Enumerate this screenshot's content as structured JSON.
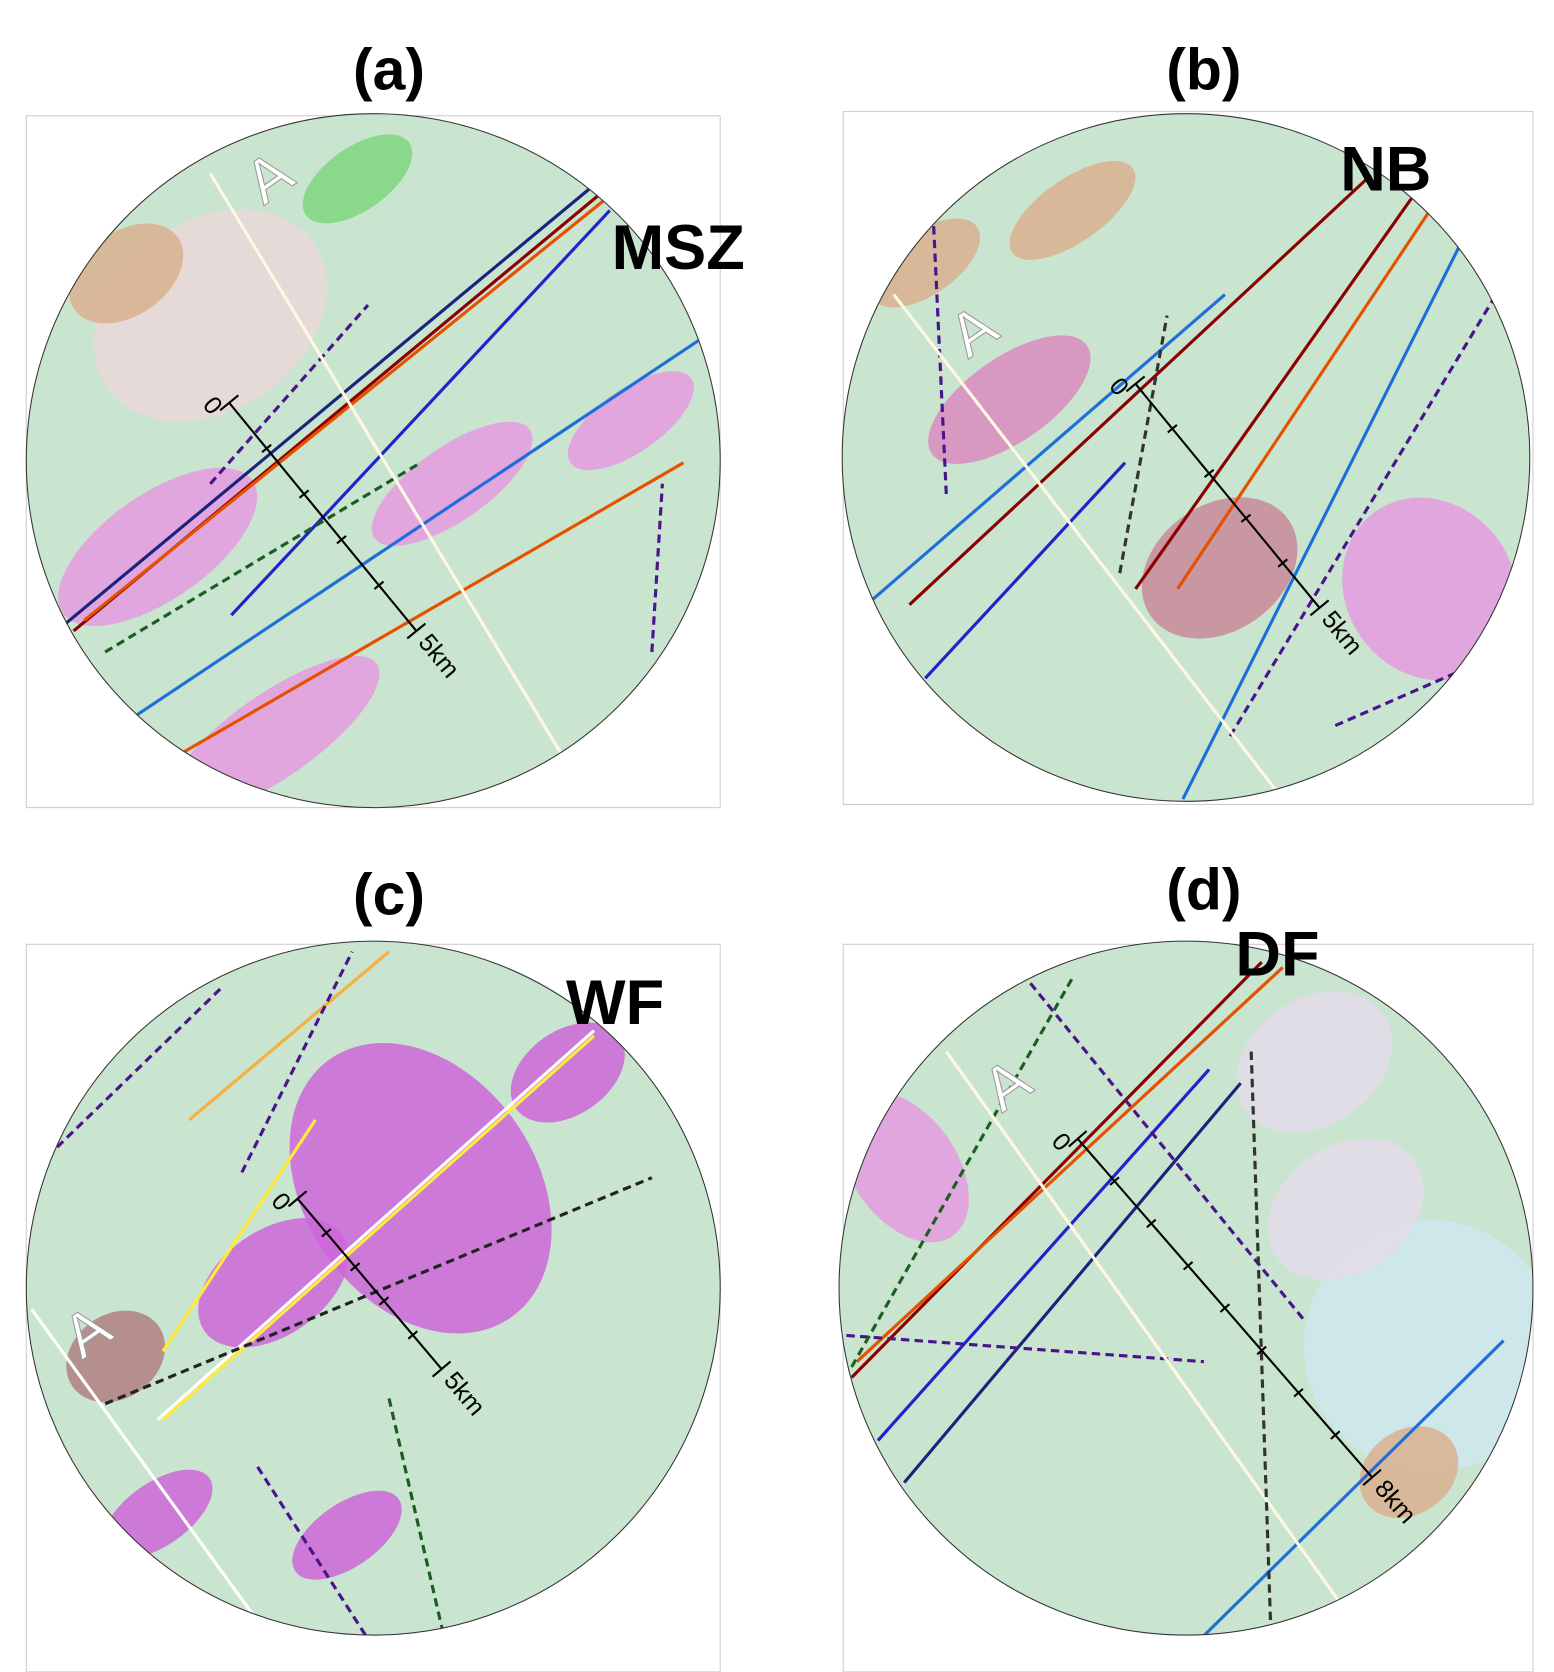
{
  "panels": [
    {
      "label": "(a)",
      "feature": "MSZ",
      "marker": "A",
      "scale_start": "0",
      "scale_end": "5km"
    },
    {
      "label": "(b)",
      "feature": "NB",
      "marker": "A",
      "scale_start": "0",
      "scale_end": "5km"
    },
    {
      "label": "(c)",
      "feature": "WF",
      "marker": "A",
      "scale_start": "0",
      "scale_end": "5km"
    },
    {
      "label": "(d)",
      "feature": "DF",
      "marker": "A",
      "scale_start": "0",
      "scale_end": "8km"
    }
  ]
}
